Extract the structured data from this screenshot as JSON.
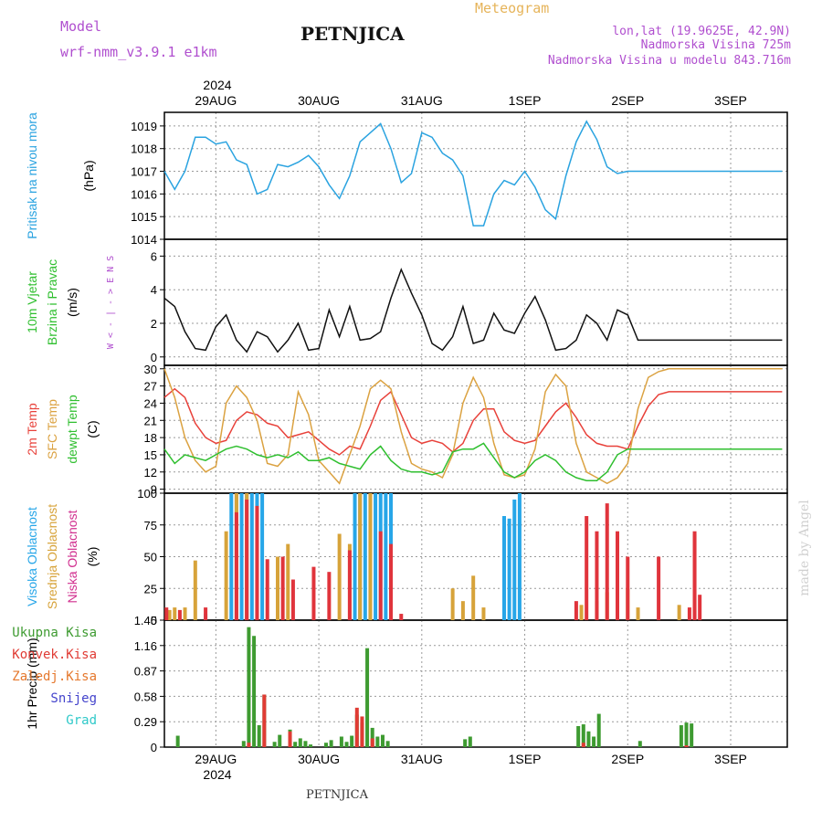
{
  "header": {
    "model_label": "Model",
    "model_value": "wrf-nmm_v3.9.1 e1km",
    "station": "PETNJICA",
    "title": "Meteogram",
    "lonlat": "lon,lat (19.9625E, 42.9N)",
    "elevation": "Nadmorska Visina 725m",
    "model_elevation": "Nadmorska Visina u modelu 843.716m",
    "year_top": "2024",
    "year_bottom": "2024",
    "footer": "PETNJICA",
    "watermark": "made by Angel"
  },
  "colors": {
    "pressure": "#2aa3e0",
    "temp2m": "#e8413a",
    "sfc": "#dba241",
    "dewpt": "#2fbf2f",
    "high": "#27a6e8",
    "mid": "#d7a33a",
    "low": "#d12f8f",
    "low_bar": "#e0343c",
    "total": "#3e9b31",
    "conv": "#e03b34",
    "froz": "#e5782d",
    "snow": "#4444cc",
    "hail": "#2fc9c9",
    "model_text": "#b04fcf",
    "title_text": "#e6b45a"
  },
  "chart_data": [
    {
      "id": "pressure",
      "type": "line",
      "title": "",
      "xlabel": "",
      "ylabel_lines": [
        "Pritisak na nivou mora",
        "(hPa)"
      ],
      "yticks": [
        "1014",
        "1015",
        "1016",
        "1017",
        "1018",
        "1019"
      ],
      "ylim": [
        1014,
        1019.6
      ],
      "x_day_labels": [
        "29AUG",
        "30AUG",
        "31AUG",
        "1SEP",
        "2SEP",
        "3SEP"
      ],
      "xlim": [
        -0.5,
        5.55
      ],
      "grid": true,
      "series": [
        {
          "x": [
            -0.5,
            -0.4,
            -0.3,
            -0.2,
            -0.1,
            0.0,
            0.1,
            0.2,
            0.3,
            0.4,
            0.5,
            0.6,
            0.7,
            0.8,
            0.9,
            1.0,
            1.1,
            1.2,
            1.3,
            1.4,
            1.5,
            1.6,
            1.7,
            1.8,
            1.9,
            2.0,
            2.1,
            2.2,
            2.3,
            2.4,
            2.5,
            2.6,
            2.7,
            2.8,
            2.9,
            3.0,
            3.1,
            3.2,
            3.3,
            3.4,
            3.5,
            3.6,
            3.7,
            3.8,
            3.9,
            4.0,
            4.1,
            4.2,
            4.3,
            4.4,
            4.5,
            4.6,
            4.7,
            4.8,
            4.9,
            5.0,
            5.1,
            5.2,
            5.3,
            5.4,
            5.5
          ],
          "values": [
            1017.0,
            1016.2,
            1017.0,
            1018.5,
            1018.5,
            1018.2,
            1018.3,
            1017.5,
            1017.3,
            1016.0,
            1016.2,
            1017.3,
            1017.2,
            1017.4,
            1017.7,
            1017.2,
            1016.4,
            1015.8,
            1016.8,
            1018.3,
            1018.7,
            1019.1,
            1018.0,
            1016.5,
            1016.9,
            1018.7,
            1018.5,
            1017.8,
            1017.5,
            1016.8,
            1014.6,
            1014.6,
            1016.0,
            1016.6,
            1016.4,
            1017.0,
            1016.3,
            1015.3,
            1014.9,
            1016.8,
            1018.3,
            1019.2,
            1018.4,
            1017.2,
            1016.9,
            1017.0,
            1017.0,
            1017.0,
            1017.0,
            1017.0,
            1017.0,
            1017.0,
            1017.0,
            1017.0,
            1017.0,
            1017.0,
            1017.0,
            1017.0,
            1017.0,
            1017.0,
            1017.0
          ]
        }
      ]
    },
    {
      "id": "wind",
      "type": "line",
      "title": "",
      "xlabel": "",
      "ylabel_lines": [
        "10m Vjetar",
        "Brzina i Pravac",
        "(m/s)"
      ],
      "compass": [
        "W",
        "<",
        "-",
        "|",
        "-",
        ">",
        "E",
        "N",
        "S"
      ],
      "yticks": [
        "0",
        "2",
        "4",
        "6"
      ],
      "ylim": [
        -0.5,
        7.0
      ],
      "xlim": [
        -0.5,
        5.55
      ],
      "grid": true,
      "series": [
        {
          "name": "",
          "x": [
            -0.5,
            -0.4,
            -0.3,
            -0.2,
            -0.1,
            0.0,
            0.1,
            0.2,
            0.3,
            0.4,
            0.5,
            0.6,
            0.7,
            0.8,
            0.9,
            1.0,
            1.1,
            1.2,
            1.3,
            1.4,
            1.5,
            1.6,
            1.7,
            1.8,
            1.9,
            2.0,
            2.1,
            2.2,
            2.3,
            2.4,
            2.5,
            2.6,
            2.7,
            2.8,
            2.9,
            3.0,
            3.1,
            3.2,
            3.3,
            3.4,
            3.5,
            3.6,
            3.7,
            3.8,
            3.9,
            4.0,
            4.1,
            4.2,
            4.3,
            4.4,
            4.5,
            4.6,
            4.7,
            4.8,
            4.9,
            5.0,
            5.1,
            5.2,
            5.3,
            5.4,
            5.5
          ],
          "values": [
            3.5,
            3.0,
            1.5,
            0.5,
            0.4,
            1.8,
            2.5,
            1.0,
            0.3,
            1.5,
            1.2,
            0.3,
            1.0,
            2.0,
            0.4,
            0.5,
            2.8,
            1.2,
            3.0,
            1.0,
            1.1,
            1.5,
            3.5,
            5.2,
            3.8,
            2.5,
            0.8,
            0.4,
            1.2,
            3.0,
            0.8,
            1.0,
            2.6,
            1.6,
            1.4,
            2.6,
            3.6,
            2.2,
            0.4,
            0.5,
            1.0,
            2.5,
            2.0,
            1.0,
            2.8,
            2.5,
            1.0,
            1.0,
            1.0,
            1.0,
            1.0,
            1.0,
            1.0,
            1.0,
            1.0,
            1.0,
            1.0,
            1.0,
            1.0,
            1.0,
            1.0
          ]
        }
      ]
    },
    {
      "id": "temperature",
      "type": "line",
      "title": "",
      "xlabel": "",
      "ylabel_lines": [
        "2m Temp",
        "SFC Temp",
        "dewpt Temp",
        "(C)"
      ],
      "yticks": [
        "9",
        "12",
        "15",
        "18",
        "21",
        "24",
        "27",
        "30"
      ],
      "ylim": [
        8.3,
        30.6
      ],
      "xlim": [
        -0.5,
        5.55
      ],
      "grid": true,
      "series": [
        {
          "name": "2m Temp",
          "x": [
            -0.5,
            -0.4,
            -0.3,
            -0.2,
            -0.1,
            0.0,
            0.1,
            0.2,
            0.3,
            0.4,
            0.5,
            0.6,
            0.7,
            0.8,
            0.9,
            1.0,
            1.1,
            1.2,
            1.3,
            1.4,
            1.5,
            1.6,
            1.7,
            1.8,
            1.9,
            2.0,
            2.1,
            2.2,
            2.3,
            2.4,
            2.5,
            2.6,
            2.7,
            2.8,
            2.9,
            3.0,
            3.1,
            3.2,
            3.3,
            3.4,
            3.5,
            3.6,
            3.7,
            3.8,
            3.9,
            4.0,
            4.1,
            4.2,
            4.3,
            4.4,
            4.5,
            4.6,
            4.7,
            4.8,
            4.9,
            5.0,
            5.1,
            5.2,
            5.3,
            5.4,
            5.5
          ],
          "values": [
            25.0,
            26.5,
            25.0,
            20.5,
            18.0,
            17.0,
            17.5,
            21.0,
            22.5,
            22.0,
            20.5,
            20.0,
            18.0,
            18.5,
            19.0,
            17.5,
            16.0,
            15.0,
            16.5,
            16.0,
            20.0,
            24.5,
            26.0,
            22.0,
            18.0,
            17.0,
            17.5,
            17.0,
            15.5,
            17.0,
            21.0,
            23.0,
            23.0,
            19.0,
            17.5,
            17.0,
            17.5,
            20.0,
            22.5,
            24.0,
            21.5,
            18.5,
            17.0,
            16.5,
            16.5,
            16.0,
            20.0,
            23.5,
            25.5,
            26.0,
            26.0,
            26.0,
            26.0,
            26.0,
            26.0,
            26.0,
            26.0,
            26.0,
            26.0,
            26.0,
            26.0
          ]
        },
        {
          "name": "SFC Temp",
          "x": [
            -0.5,
            -0.4,
            -0.3,
            -0.2,
            -0.1,
            0.0,
            0.1,
            0.2,
            0.3,
            0.4,
            0.5,
            0.6,
            0.7,
            0.8,
            0.9,
            1.0,
            1.1,
            1.2,
            1.3,
            1.4,
            1.5,
            1.6,
            1.7,
            1.8,
            1.9,
            2.0,
            2.1,
            2.2,
            2.3,
            2.4,
            2.5,
            2.6,
            2.7,
            2.8,
            2.9,
            3.0,
            3.1,
            3.2,
            3.3,
            3.4,
            3.5,
            3.6,
            3.7,
            3.8,
            3.9,
            4.0,
            4.1,
            4.2,
            4.3,
            4.4,
            4.5,
            4.6,
            4.7,
            4.8,
            4.9,
            5.0,
            5.1,
            5.2,
            5.3,
            5.4,
            5.5
          ],
          "values": [
            30.0,
            25.0,
            18.0,
            14.0,
            12.0,
            13.0,
            24.0,
            27.0,
            25.0,
            21.0,
            13.5,
            13.0,
            15.0,
            26.0,
            22.0,
            14.0,
            12.0,
            10.0,
            15.0,
            20.0,
            26.5,
            28.0,
            26.5,
            19.0,
            13.5,
            12.5,
            12.0,
            11.0,
            15.0,
            24.0,
            28.5,
            25.0,
            17.0,
            11.5,
            11.0,
            11.5,
            16.0,
            26.0,
            29.0,
            27.0,
            17.0,
            12.0,
            11.0,
            10.0,
            11.0,
            13.5,
            23.0,
            28.5,
            29.5,
            30.0,
            30.0,
            30.0,
            30.0,
            30.0,
            30.0,
            30.0,
            30.0,
            30.0,
            30.0,
            30.0,
            30.0
          ]
        },
        {
          "name": "dewpt Temp",
          "x": [
            -0.5,
            -0.4,
            -0.3,
            -0.2,
            -0.1,
            0.0,
            0.1,
            0.2,
            0.3,
            0.4,
            0.5,
            0.6,
            0.7,
            0.8,
            0.9,
            1.0,
            1.1,
            1.2,
            1.3,
            1.4,
            1.5,
            1.6,
            1.7,
            1.8,
            1.9,
            2.0,
            2.1,
            2.2,
            2.3,
            2.4,
            2.5,
            2.6,
            2.7,
            2.8,
            2.9,
            3.0,
            3.1,
            3.2,
            3.3,
            3.4,
            3.5,
            3.6,
            3.7,
            3.8,
            3.9,
            4.0,
            4.1,
            4.2,
            4.3,
            4.4,
            4.5,
            4.6,
            4.7,
            4.8,
            4.9,
            5.0,
            5.1,
            5.2,
            5.3,
            5.4,
            5.5
          ],
          "values": [
            16.0,
            13.5,
            15.0,
            14.5,
            14.0,
            15.0,
            16.0,
            16.5,
            16.0,
            15.0,
            14.5,
            15.0,
            14.5,
            15.5,
            14.0,
            14.0,
            14.5,
            13.5,
            13.0,
            12.5,
            15.0,
            16.5,
            14.0,
            12.5,
            12.0,
            12.0,
            11.5,
            12.0,
            15.5,
            16.0,
            16.0,
            17.0,
            14.5,
            12.0,
            11.0,
            12.0,
            14.0,
            15.0,
            14.0,
            12.0,
            11.0,
            10.5,
            10.5,
            12.0,
            15.0,
            16.0,
            16.0,
            16.0,
            16.0,
            16.0,
            16.0,
            16.0,
            16.0,
            16.0,
            16.0,
            16.0,
            16.0,
            16.0,
            16.0,
            16.0,
            16.0
          ]
        }
      ]
    },
    {
      "id": "clouds",
      "type": "bar",
      "title": "",
      "xlabel": "",
      "ylabel_lines": [
        "Visoka Oblacnost",
        "Srednja Oblacnost",
        "Niska Oblacnost",
        "(%)"
      ],
      "yticks": [
        "0",
        "25",
        "50",
        "75",
        "100"
      ],
      "ylim": [
        0,
        100
      ],
      "xlim": [
        -0.5,
        5.55
      ],
      "grid": true,
      "series": [
        {
          "name": "Visoka Oblacnost",
          "x": [
            -0.1,
            0.15,
            0.2,
            0.25,
            0.3,
            0.35,
            0.4,
            0.45,
            1.35,
            1.4,
            1.45,
            1.5,
            1.55,
            1.6,
            1.65,
            1.7,
            2.8,
            2.85,
            2.9,
            2.95,
            3.0,
            4.0,
            4.05,
            4.1,
            4.15,
            4.2
          ],
          "values": [
            5,
            100,
            100,
            100,
            100,
            100,
            100,
            100,
            100,
            100,
            100,
            100,
            100,
            100,
            100,
            100,
            82,
            80,
            95,
            100,
            0,
            0,
            0,
            0,
            0,
            0
          ]
        },
        {
          "name": "Srednja Oblacnost",
          "x": [
            -0.45,
            -0.4,
            -0.3,
            -0.2,
            0.1,
            0.2,
            0.3,
            0.6,
            0.7,
            1.2,
            1.3,
            1.4,
            1.5,
            2.3,
            2.4,
            2.5,
            2.6,
            3.55,
            3.7,
            3.8,
            3.9,
            4.0,
            4.1,
            4.5,
            4.65
          ],
          "values": [
            8,
            10,
            10,
            47,
            70,
            100,
            100,
            50,
            60,
            68,
            60,
            100,
            100,
            25,
            15,
            35,
            10,
            12,
            15,
            22,
            60,
            25,
            10,
            12,
            68
          ]
        },
        {
          "name": "Niska Oblacnost",
          "x": [
            -0.48,
            -0.35,
            -0.1,
            0.2,
            0.3,
            0.4,
            0.5,
            0.65,
            0.75,
            0.95,
            1.1,
            1.3,
            1.6,
            1.7,
            1.8,
            3.5,
            3.6,
            3.7,
            3.8,
            3.9,
            4.0,
            4.3,
            4.6,
            4.65,
            4.7
          ],
          "values": [
            10,
            8,
            10,
            85,
            95,
            90,
            48,
            50,
            32,
            42,
            38,
            55,
            70,
            60,
            5,
            15,
            82,
            70,
            92,
            70,
            50,
            50,
            10,
            70,
            20
          ]
        }
      ]
    },
    {
      "id": "precipitation",
      "type": "bar",
      "title": "",
      "xlabel": "",
      "ylabel_lines": [
        "1hr Precip (mm)"
      ],
      "legend": [
        "Ukupna Kisa",
        "Konvek.Kisa",
        "Zaledj.Kisa",
        "Snijeg",
        "Grad"
      ],
      "yticks": [
        "0",
        "0.29",
        "0.58",
        "0.87",
        "1.16",
        "1.45"
      ],
      "ylim": [
        0,
        1.45
      ],
      "x_day_labels": [
        "29AUG",
        "30AUG",
        "31AUG",
        "1SEP",
        "2SEP",
        "3SEP"
      ],
      "xlim": [
        -0.5,
        5.55
      ],
      "grid": true,
      "series": [
        {
          "name": "Ukupna Kisa",
          "x": [
            -0.37,
            0.27,
            0.32,
            0.37,
            0.42,
            0.47,
            0.57,
            0.62,
            0.72,
            0.77,
            0.82,
            0.87,
            0.92,
            1.07,
            1.12,
            1.22,
            1.27,
            1.32,
            1.37,
            1.42,
            1.47,
            1.52,
            1.57,
            1.62,
            1.67,
            2.42,
            2.47,
            3.52,
            3.57,
            3.62,
            3.67,
            3.72,
            4.12,
            4.52,
            4.57,
            4.62
          ],
          "values": [
            0.13,
            0.07,
            1.37,
            1.27,
            0.25,
            0.6,
            0.06,
            0.14,
            0.2,
            0.06,
            0.1,
            0.07,
            0.03,
            0.05,
            0.08,
            0.12,
            0.06,
            0.13,
            0.37,
            0.28,
            1.13,
            0.22,
            0.12,
            0.14,
            0.07,
            0.09,
            0.12,
            0.24,
            0.26,
            0.18,
            0.12,
            0.38,
            0.07,
            0.25,
            0.28,
            0.27
          ]
        },
        {
          "name": "Konvek.Kisa",
          "x": [
            0.32,
            0.47,
            0.72,
            1.37,
            1.42,
            1.52,
            3.57,
            4.57
          ],
          "values": [
            0.05,
            0.6,
            0.18,
            0.45,
            0.35,
            0.1,
            0.05,
            0.02
          ]
        }
      ]
    }
  ]
}
